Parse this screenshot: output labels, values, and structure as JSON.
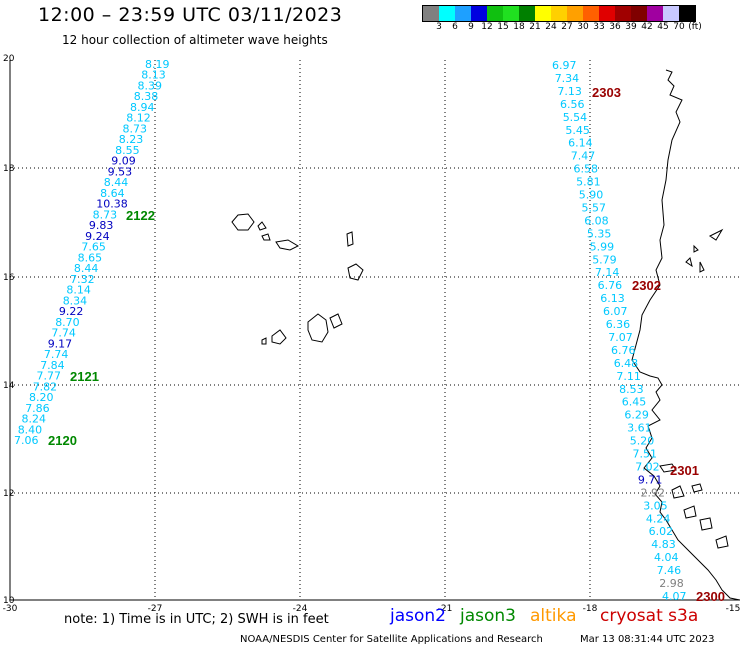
{
  "header": {
    "title": "12:00 – 23:59 UTC 03/11/2023",
    "subtitle": "12 hour collection of altimeter wave heights"
  },
  "colorbar": {
    "colors": [
      "#808080",
      "#00ffff",
      "#1ea0ff",
      "#0000e0",
      "#10c010",
      "#20e020",
      "#008000",
      "#ffff00",
      "#ffd000",
      "#ffa000",
      "#ff6000",
      "#e00000",
      "#a00000",
      "#800000",
      "#a000a0",
      "#c8c8ff",
      "#000000"
    ],
    "labels": [
      "3",
      "6",
      "9",
      "12",
      "15",
      "18",
      "21",
      "24",
      "27",
      "30",
      "33",
      "36",
      "39",
      "42",
      "45",
      "70",
      "(ft)"
    ]
  },
  "axes": {
    "x_ticks": [
      "-30",
      "-27",
      "-24",
      "-21",
      "-18",
      "-15"
    ],
    "y_ticks": [
      "20",
      "18",
      "16",
      "14",
      "12",
      "10"
    ]
  },
  "colors": {
    "cyan": "#00c8ff",
    "blue": "#0000c0",
    "gray": "#808080",
    "jason2": "#0000ff",
    "jason3": "#008800",
    "altika": "#ff9900",
    "cryosat": "#cc0000",
    "pass_green": "#008800",
    "pass_maroon": "#990000"
  },
  "tracks": {
    "west": [
      {
        "v": "8.19",
        "c": "cyan"
      },
      {
        "v": "8.13",
        "c": "cyan"
      },
      {
        "v": "8.39",
        "c": "cyan"
      },
      {
        "v": "8.38",
        "c": "cyan"
      },
      {
        "v": "8.94",
        "c": "cyan"
      },
      {
        "v": "8.12",
        "c": "cyan"
      },
      {
        "v": "8.73",
        "c": "cyan"
      },
      {
        "v": "8.23",
        "c": "cyan"
      },
      {
        "v": "8.55",
        "c": "cyan"
      },
      {
        "v": "9.09",
        "c": "blue"
      },
      {
        "v": "9.53",
        "c": "blue"
      },
      {
        "v": "8.44",
        "c": "cyan"
      },
      {
        "v": "8.64",
        "c": "cyan"
      },
      {
        "v": "10.38",
        "c": "blue"
      },
      {
        "v": "8.73",
        "c": "cyan"
      },
      {
        "v": "9.83",
        "c": "blue"
      },
      {
        "v": "9.24",
        "c": "blue"
      },
      {
        "v": "7.65",
        "c": "cyan"
      },
      {
        "v": "8.65",
        "c": "cyan"
      },
      {
        "v": "8.44",
        "c": "cyan"
      },
      {
        "v": "7.32",
        "c": "cyan"
      },
      {
        "v": "8.14",
        "c": "cyan"
      },
      {
        "v": "8.34",
        "c": "cyan"
      },
      {
        "v": "9.22",
        "c": "blue"
      },
      {
        "v": "8.70",
        "c": "cyan"
      },
      {
        "v": "7.74",
        "c": "cyan"
      },
      {
        "v": "9.17",
        "c": "blue"
      },
      {
        "v": "7.74",
        "c": "cyan"
      },
      {
        "v": "7.84",
        "c": "cyan"
      },
      {
        "v": "7.77",
        "c": "cyan"
      },
      {
        "v": "7.82",
        "c": "cyan"
      },
      {
        "v": "8.20",
        "c": "cyan"
      },
      {
        "v": "7.86",
        "c": "cyan"
      },
      {
        "v": "8.24",
        "c": "cyan"
      },
      {
        "v": "8.40",
        "c": "cyan"
      },
      {
        "v": "7.06",
        "c": "cyan"
      }
    ],
    "east": [
      {
        "v": "6.97",
        "c": "cyan"
      },
      {
        "v": "7.34",
        "c": "cyan"
      },
      {
        "v": "7.13",
        "c": "cyan"
      },
      {
        "v": "6.56",
        "c": "cyan"
      },
      {
        "v": "5.54",
        "c": "cyan"
      },
      {
        "v": "5.45",
        "c": "cyan"
      },
      {
        "v": "6.14",
        "c": "cyan"
      },
      {
        "v": "7.47",
        "c": "cyan"
      },
      {
        "v": "6.58",
        "c": "cyan"
      },
      {
        "v": "5.81",
        "c": "cyan"
      },
      {
        "v": "5.90",
        "c": "cyan"
      },
      {
        "v": "5.57",
        "c": "cyan"
      },
      {
        "v": "6.08",
        "c": "cyan"
      },
      {
        "v": "5.35",
        "c": "cyan"
      },
      {
        "v": "5.99",
        "c": "cyan"
      },
      {
        "v": "5.79",
        "c": "cyan"
      },
      {
        "v": "7.14",
        "c": "cyan"
      },
      {
        "v": "6.76",
        "c": "cyan"
      },
      {
        "v": "6.13",
        "c": "cyan"
      },
      {
        "v": "6.07",
        "c": "cyan"
      },
      {
        "v": "6.36",
        "c": "cyan"
      },
      {
        "v": "7.07",
        "c": "cyan"
      },
      {
        "v": "6.76",
        "c": "cyan"
      },
      {
        "v": "6.48",
        "c": "cyan"
      },
      {
        "v": "7.11",
        "c": "cyan"
      },
      {
        "v": "8.53",
        "c": "cyan"
      },
      {
        "v": "6.45",
        "c": "cyan"
      },
      {
        "v": "6.29",
        "c": "cyan"
      },
      {
        "v": "3.61",
        "c": "cyan"
      },
      {
        "v": "5.20",
        "c": "cyan"
      },
      {
        "v": "7.51",
        "c": "cyan"
      },
      {
        "v": "7.02",
        "c": "cyan"
      },
      {
        "v": "9.71",
        "c": "blue"
      },
      {
        "v": "2.92",
        "c": "gray"
      },
      {
        "v": "3.05",
        "c": "cyan"
      },
      {
        "v": "4.24",
        "c": "cyan"
      },
      {
        "v": "6.02",
        "c": "cyan"
      },
      {
        "v": "4.83",
        "c": "cyan"
      },
      {
        "v": "4.04",
        "c": "cyan"
      },
      {
        "v": "7.46",
        "c": "cyan"
      },
      {
        "v": "2.98",
        "c": "gray"
      },
      {
        "v": "4.07",
        "c": "cyan"
      }
    ]
  },
  "pass_labels": {
    "p2122": "2122",
    "p2121": "2121",
    "p2120": "2120",
    "p2303": "2303",
    "p2302": "2302",
    "p2301": "2301",
    "p2300": "2300"
  },
  "footer": {
    "note": "note:  1) Time is in UTC;  2) SWH is in feet",
    "jason2": "jason2",
    "jason3": "jason3",
    "altika": "altika",
    "cryosat": "cryosat s3a",
    "credit": "NOAA/NESDIS Center for Satellite Applications and Research",
    "timestamp": "Mar 13 08:31:44 UTC 2023"
  }
}
